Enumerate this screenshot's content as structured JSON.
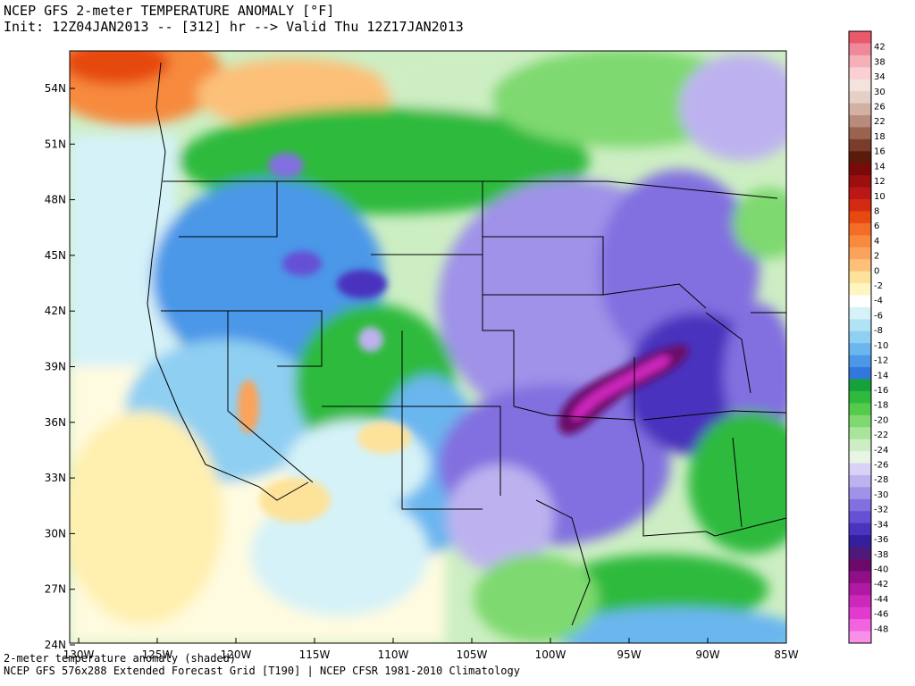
{
  "header": {
    "title_line1": "NCEP GFS 2-meter TEMPERATURE ANOMALY [°F]",
    "title_line2": "Init: 12Z04JAN2013 -- [312] hr --> Valid Thu 12Z17JAN2013"
  },
  "footer": {
    "line1": "2-meter temperature anomaly (shaded)",
    "line2": "NCEP GFS 576x288 Extended Forecast Grid [T190] | NCEP CFSR 1981-2010 Climatology"
  },
  "axes": {
    "lat_labels": [
      "54N",
      "51N",
      "48N",
      "45N",
      "42N",
      "39N",
      "36N",
      "33N",
      "30N",
      "27N",
      "24N"
    ],
    "lon_labels": [
      "130W",
      "125W",
      "120W",
      "115W",
      "110W",
      "105W",
      "100W",
      "95W",
      "90W",
      "85W"
    ]
  },
  "colorbar": {
    "labels": [
      "42",
      "38",
      "34",
      "30",
      "26",
      "22",
      "18",
      "16",
      "14",
      "12",
      "10",
      "8",
      "6",
      "4",
      "2",
      "0",
      "-2",
      "-4",
      "-6",
      "-8",
      "-10",
      "-12",
      "-14",
      "-16",
      "-18",
      "-20",
      "-22",
      "-24",
      "-26",
      "-28",
      "-30",
      "-32",
      "-34",
      "-36",
      "-38",
      "-40",
      "-42",
      "-44",
      "-46",
      "-48"
    ],
    "colors": [
      "#e85a6b",
      "#ef8898",
      "#f5b0b8",
      "#fad0d4",
      "#f4e2dc",
      "#e6cfc6",
      "#d2b0a3",
      "#b98b7b",
      "#9a6350",
      "#7b3c2b",
      "#5a1a0c",
      "#7a0a0a",
      "#9b0f0f",
      "#bb1717",
      "#d32b12",
      "#e64a10",
      "#f36c28",
      "#f78a3e",
      "#fba35a",
      "#fcc078",
      "#fde29a",
      "#fff5c0",
      "#ffffff",
      "#d5f2f8",
      "#b1e3f4",
      "#8fcff2",
      "#6bb6ef",
      "#4c97e8",
      "#3277de",
      "#16a23b",
      "#2fba3e",
      "#54cb4a",
      "#7ed970",
      "#a8e49a",
      "#cdeec3",
      "#e8f5e4",
      "#d9d2f5",
      "#bdb2ef",
      "#9f92e8",
      "#8270e0",
      "#6650d4",
      "#4a33bd",
      "#341e9d",
      "#4d1a7a",
      "#6b0a6a",
      "#8f0f86",
      "#b01aa2",
      "#cc28bb",
      "#e23ad0",
      "#f263e0",
      "#f890ea"
    ],
    "units": "°F"
  }
}
